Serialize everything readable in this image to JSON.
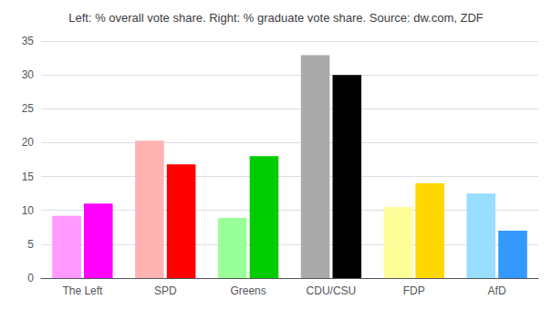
{
  "chart_data": {
    "type": "bar",
    "title": "Left: % overall vote share. Right: % graduate vote share. Source: dw.com, ZDF",
    "categories": [
      "The Left",
      "SPD",
      "Greens",
      "CDU/CSU",
      "FDP",
      "AfD"
    ],
    "series": [
      {
        "colors": [
          "#FF99FF",
          "#FFB3B3",
          "#99FF99",
          "#AAAAAA",
          "#FFFF99",
          "#99DDFF"
        ],
        "values": [
          9.2,
          20.3,
          8.9,
          32.9,
          10.5,
          12.5
        ]
      },
      {
        "colors": [
          "#FF00FF",
          "#FF0000",
          "#00CC00",
          "#000000",
          "#FFD700",
          "#3399FF"
        ],
        "values": [
          11.0,
          16.8,
          18.0,
          30.0,
          14.0,
          7.0
        ]
      }
    ],
    "ylim": [
      0,
      35
    ],
    "yticks": [
      0,
      5,
      10,
      15,
      20,
      25,
      30,
      35
    ],
    "grid": true
  }
}
